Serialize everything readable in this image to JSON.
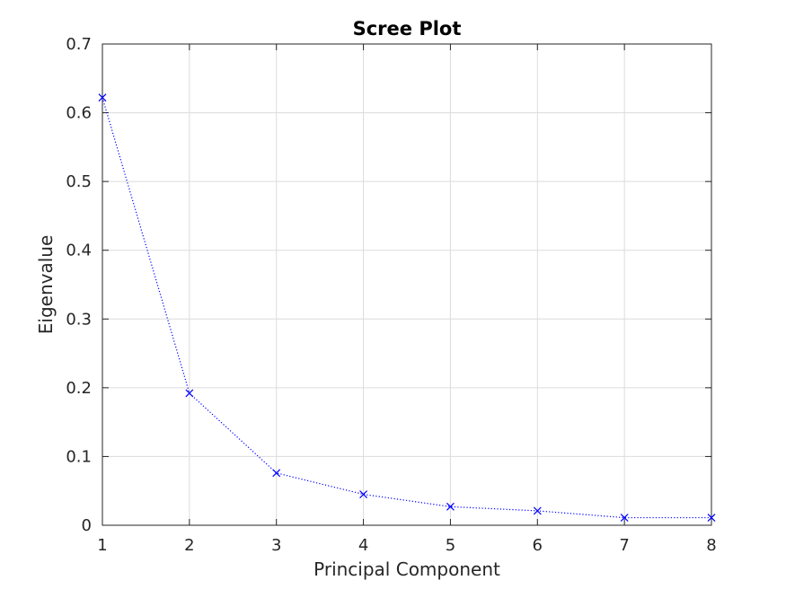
{
  "chart_data": {
    "type": "line",
    "title": "Scree Plot",
    "xlabel": "Principal Component",
    "ylabel": "Eigenvalue",
    "xlim": [
      1,
      8
    ],
    "ylim": [
      0,
      0.7
    ],
    "xticks": [
      1,
      2,
      3,
      4,
      5,
      6,
      7,
      8
    ],
    "xtick_labels": [
      "1",
      "2",
      "3",
      "4",
      "5",
      "6",
      "7",
      "8"
    ],
    "yticks": [
      0,
      0.1,
      0.2,
      0.3,
      0.4,
      0.5,
      0.6,
      0.7
    ],
    "ytick_labels": [
      "0",
      "0.1",
      "0.2",
      "0.3",
      "0.4",
      "0.5",
      "0.6",
      "0.7"
    ],
    "grid": true,
    "series": [
      {
        "x": [
          1,
          2,
          3,
          4,
          5,
          6,
          7,
          8
        ],
        "values": [
          0.622,
          0.192,
          0.076,
          0.045,
          0.027,
          0.021,
          0.011,
          0.011
        ],
        "color": "#0000ff",
        "line_style": "dotted",
        "marker": "x"
      }
    ]
  }
}
